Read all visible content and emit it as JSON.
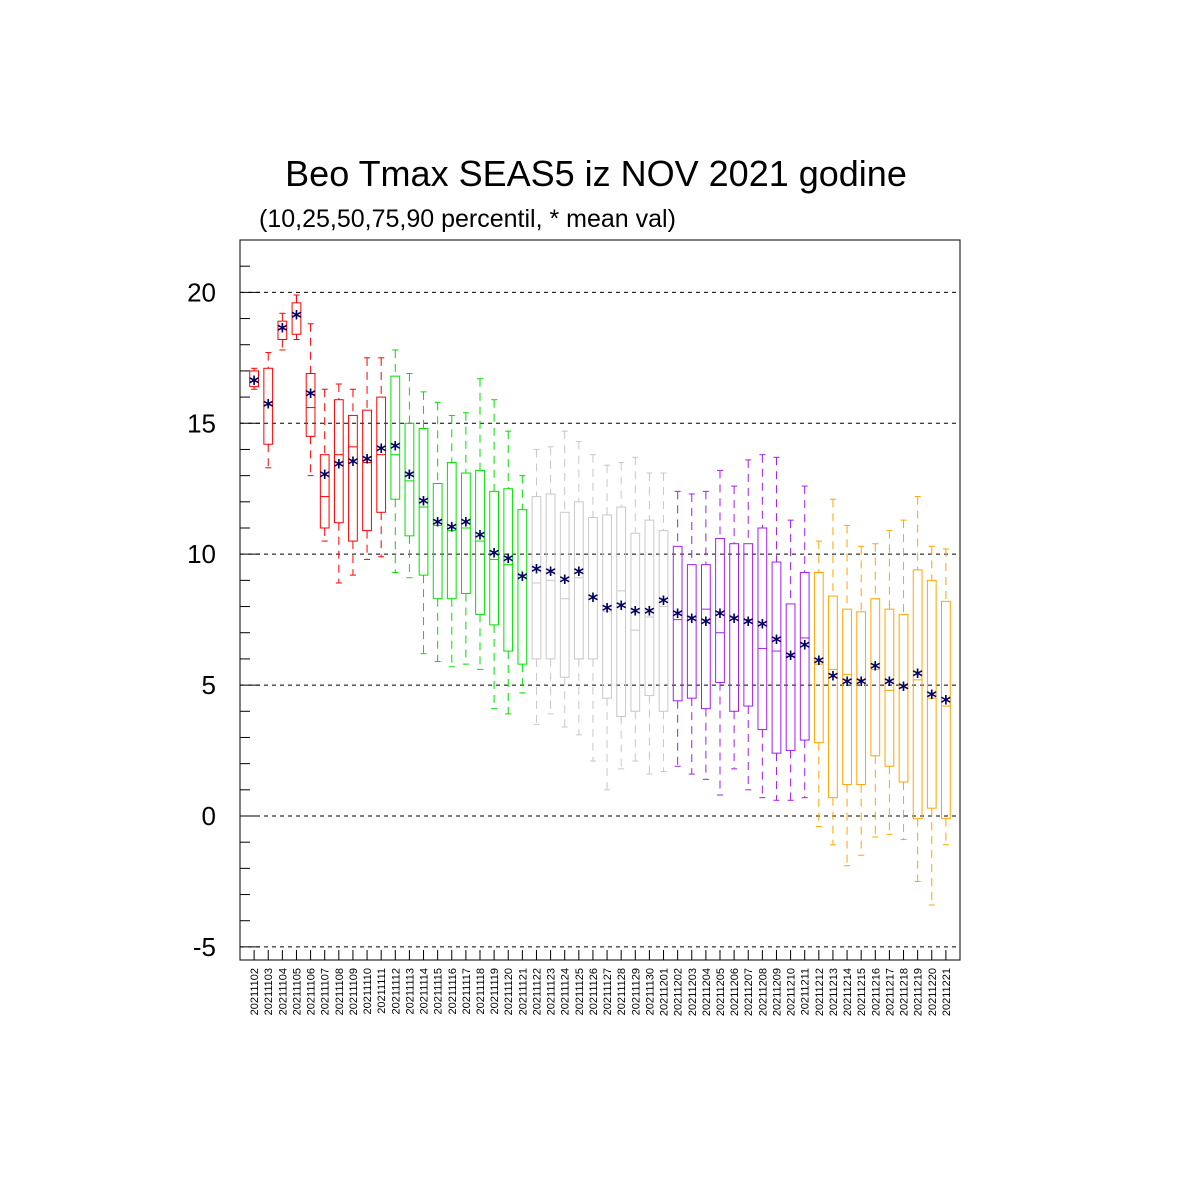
{
  "chart_data": {
    "type": "box",
    "title": "Beo Tmax SEAS5 iz NOV 2021 godine",
    "subtitle": "(10,25,50,75,90 percentil, * mean val)",
    "ylim": [
      -5.5,
      22
    ],
    "yticks": [
      20,
      15,
      10,
      5,
      0,
      -5
    ],
    "grid": "horizontal dashed",
    "categories": [
      "20211102",
      "20211103",
      "20211104",
      "20211105",
      "20211106",
      "20211107",
      "20211108",
      "20211109",
      "20211110",
      "20211111",
      "20211112",
      "20211113",
      "20211114",
      "20211115",
      "20211116",
      "20211117",
      "20211118",
      "20211119",
      "20211120",
      "20211121",
      "20211122",
      "20211123",
      "20211124",
      "20211125",
      "20211126",
      "20211127",
      "20211128",
      "20211129",
      "20211130",
      "20211201",
      "20211202",
      "20211203",
      "20211204",
      "20211205",
      "20211206",
      "20211207",
      "20211208",
      "20211209",
      "20211210",
      "20211211",
      "20211212",
      "20211213",
      "20211214",
      "20211215",
      "20211216",
      "20211217",
      "20211218",
      "20211219",
      "20211220",
      "20211221"
    ],
    "colors": [
      "#ff0000",
      "#ff0000",
      "#ff0000",
      "#ff0000",
      "#ff0000",
      "#ff0000",
      "#ff0000",
      "#ff0000",
      "#ff0000",
      "#ff0000",
      "#00e000",
      "#00e000",
      "#00e000",
      "#00e000",
      "#00e000",
      "#00e000",
      "#00e000",
      "#00e000",
      "#00e000",
      "#00e000",
      "#c8c8c8",
      "#c8c8c8",
      "#c8c8c8",
      "#c8c8c8",
      "#c8c8c8",
      "#c8c8c8",
      "#c8c8c8",
      "#c8c8c8",
      "#c8c8c8",
      "#c8c8c8",
      "#a020f0",
      "#a020f0",
      "#a020f0",
      "#a020f0",
      "#a020f0",
      "#a020f0",
      "#a020f0",
      "#a020f0",
      "#a020f0",
      "#a020f0",
      "#ffa500",
      "#ffa500",
      "#ffa500",
      "#ffa500",
      "#ffa500",
      "#ffa500",
      "#ffa500",
      "#ffa500",
      "#ffa500",
      "#ffa500"
    ],
    "p10": [
      16.3,
      13.3,
      17.8,
      18.2,
      13.0,
      10.5,
      8.9,
      9.2,
      9.8,
      9.9,
      9.3,
      9.1,
      6.2,
      5.9,
      5.7,
      5.8,
      5.6,
      4.1,
      3.9,
      4.7,
      3.5,
      3.9,
      3.4,
      3.1,
      2.1,
      1.0,
      1.8,
      2.1,
      1.6,
      1.7,
      1.9,
      1.6,
      1.4,
      0.8,
      1.8,
      1.0,
      0.7,
      0.6,
      0.6,
      0.7,
      -0.4,
      -1.1,
      -1.9,
      -1.5,
      -0.8,
      -0.7,
      -0.9,
      -2.5,
      -3.4,
      -1.1
    ],
    "p25": [
      16.4,
      14.2,
      18.2,
      18.4,
      14.5,
      11.0,
      11.2,
      10.5,
      10.9,
      11.6,
      12.1,
      10.7,
      9.2,
      8.3,
      8.3,
      8.5,
      7.7,
      7.3,
      6.3,
      5.8,
      6.0,
      6.0,
      5.3,
      6.0,
      6.0,
      4.5,
      3.8,
      4.0,
      4.6,
      4.0,
      4.4,
      4.5,
      4.1,
      5.1,
      4.0,
      4.2,
      3.3,
      2.4,
      2.5,
      2.9,
      2.8,
      0.7,
      1.2,
      1.2,
      2.3,
      1.9,
      1.3,
      -0.1,
      0.3,
      -0.1
    ],
    "p50": [
      16.6,
      15.7,
      18.6,
      19.1,
      15.6,
      12.2,
      13.8,
      14.1,
      13.5,
      13.8,
      13.8,
      12.8,
      11.8,
      11.1,
      10.9,
      11.0,
      10.5,
      9.8,
      9.6,
      9.2,
      8.9,
      9.0,
      8.3,
      9.1,
      8.3,
      7.8,
      8.6,
      7.1,
      7.6,
      8.0,
      7.5,
      7.6,
      7.9,
      7.0,
      7.6,
      7.5,
      6.4,
      6.3,
      6.1,
      6.8,
      5.8,
      5.6,
      5.4,
      5.2,
      5.6,
      4.8,
      4.9,
      5.2,
      4.5,
      4.2
    ],
    "p75": [
      17.0,
      17.1,
      18.9,
      19.6,
      16.9,
      13.8,
      15.9,
      15.3,
      15.5,
      16.0,
      16.8,
      15.0,
      14.8,
      12.7,
      13.5,
      13.1,
      13.2,
      12.4,
      12.5,
      11.7,
      12.2,
      12.3,
      11.6,
      12.0,
      11.4,
      11.5,
      11.8,
      10.8,
      11.3,
      10.9,
      10.3,
      9.6,
      9.6,
      10.6,
      10.4,
      10.4,
      11.0,
      9.7,
      8.1,
      9.3,
      9.3,
      8.4,
      7.9,
      7.8,
      8.3,
      7.9,
      7.7,
      9.4,
      9.0,
      8.2
    ],
    "p90": [
      17.1,
      17.7,
      19.2,
      19.9,
      18.8,
      16.3,
      16.5,
      16.3,
      17.5,
      17.5,
      17.8,
      16.9,
      16.2,
      15.8,
      15.3,
      15.4,
      16.7,
      15.9,
      14.7,
      13.0,
      14.0,
      14.1,
      14.7,
      14.3,
      13.8,
      13.4,
      13.5,
      13.7,
      13.1,
      13.1,
      12.4,
      12.3,
      12.4,
      13.2,
      12.6,
      13.6,
      13.8,
      13.7,
      11.3,
      12.6,
      10.5,
      12.1,
      11.1,
      10.3,
      10.4,
      10.9,
      11.3,
      12.2,
      10.3,
      10.2
    ],
    "mean": [
      16.6,
      15.7,
      18.6,
      19.1,
      16.1,
      13.0,
      13.4,
      13.5,
      13.6,
      14.0,
      14.1,
      13.0,
      12.0,
      11.2,
      11.0,
      11.2,
      10.7,
      10.0,
      9.8,
      9.1,
      9.4,
      9.3,
      9.0,
      9.3,
      8.3,
      7.9,
      8.0,
      7.8,
      7.8,
      8.2,
      7.7,
      7.5,
      7.4,
      7.7,
      7.5,
      7.4,
      7.3,
      6.7,
      6.1,
      6.5,
      5.9,
      5.3,
      5.1,
      5.1,
      5.7,
      5.1,
      4.9,
      5.4,
      4.6,
      4.4
    ],
    "mean_marker": "*",
    "mean_color": "#000060"
  }
}
